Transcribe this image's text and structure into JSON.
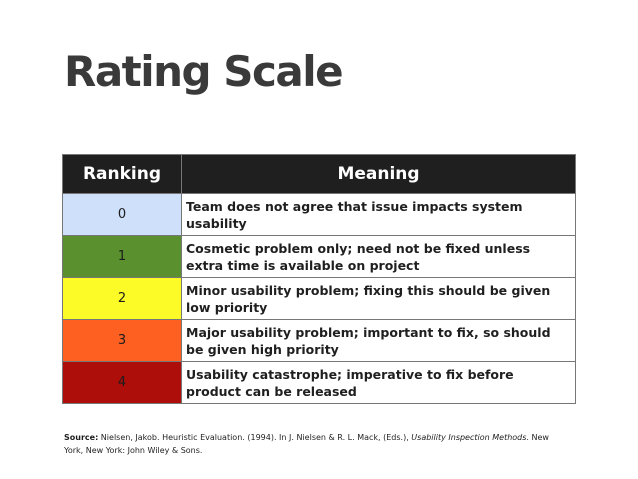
{
  "title": "Rating Scale",
  "table": {
    "headers": {
      "ranking": "Ranking",
      "meaning": "Meaning"
    },
    "rows": [
      {
        "ranking": "0",
        "color": "#cfe0fb",
        "meaning": "Team does not agree that issue impacts system usability"
      },
      {
        "ranking": "1",
        "color": "#5a902e",
        "meaning": "Cosmetic problem only; need not be fixed unless extra time is available on project"
      },
      {
        "ranking": "2",
        "color": "#fdfb27",
        "meaning": "Minor usability problem; fixing this should be given low priority"
      },
      {
        "ranking": "3",
        "color": "#fd6021",
        "meaning": "Major usability problem; important to fix, so should be given high priority"
      },
      {
        "ranking": "4",
        "color": "#ad0e0a",
        "meaning": "Usability catastrophe; imperative to fix before product can be released"
      }
    ]
  },
  "source": {
    "label": "Source:",
    "text_before": " Nielsen, Jakob. Heuristic Evaluation. (1994). In J. Nielsen & R. L. Mack, (Eds.), ",
    "book_title": "Usability Inspection Methods",
    "text_after": ". New York, New York: John Wiley & Sons."
  }
}
